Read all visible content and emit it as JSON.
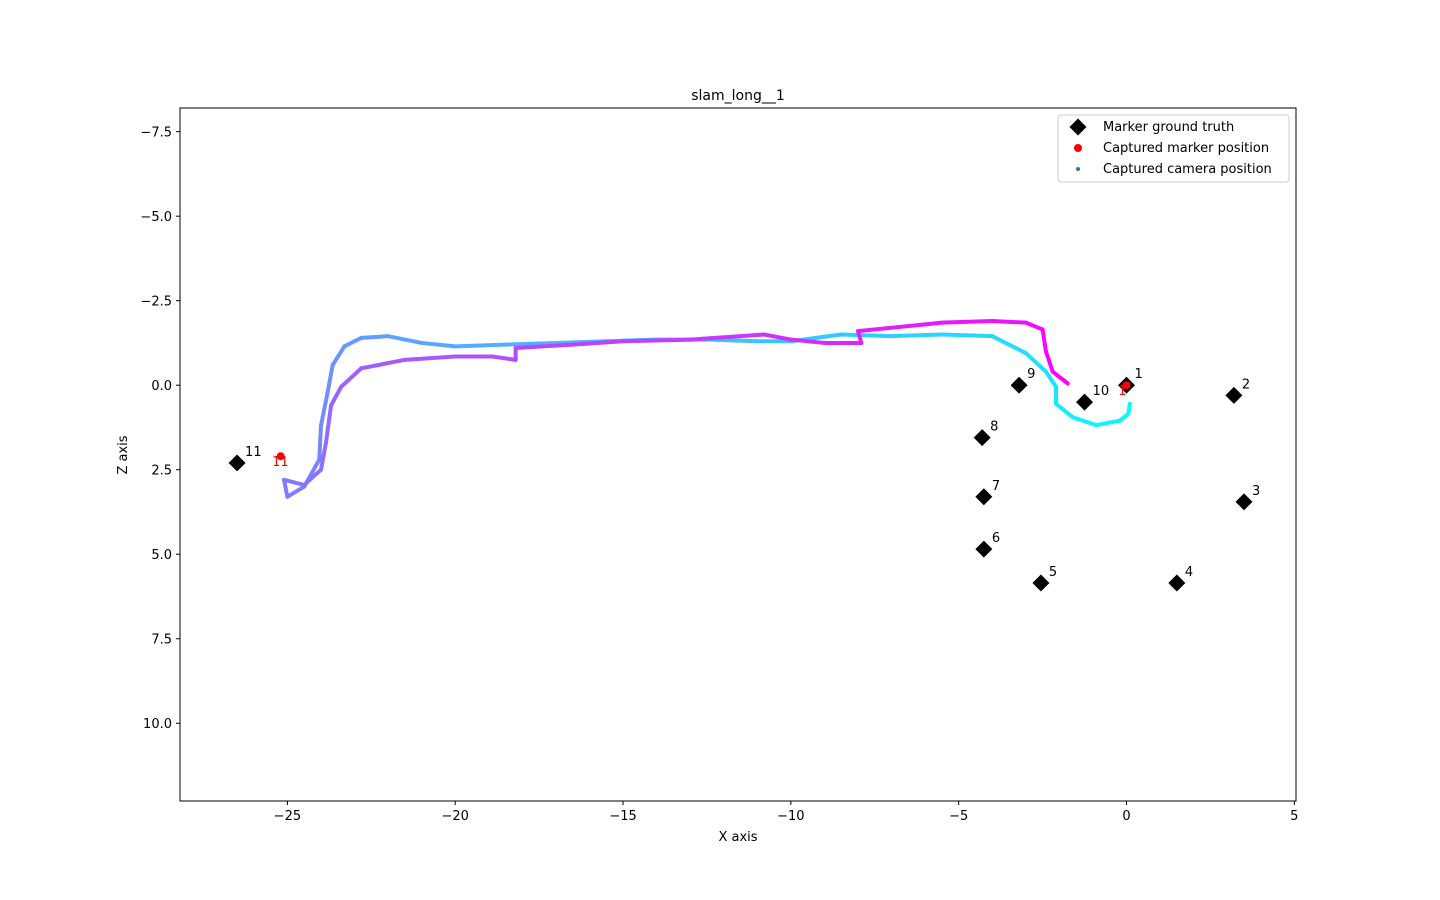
{
  "chart_data": {
    "type": "scatter",
    "title": "slam_long__1",
    "xlabel": "X axis",
    "ylabel": "Z axis",
    "xlim": [
      -28.2,
      5.05
    ],
    "ylim": [
      12.3,
      -8.2
    ],
    "y_inverted": true,
    "grid": false,
    "legend_position": "top-right",
    "x_ticks": [
      -25,
      -20,
      -15,
      -10,
      -5,
      0,
      5
    ],
    "x_tick_labels": [
      "−25",
      "−20",
      "−15",
      "−10",
      "−5",
      "0",
      "5"
    ],
    "y_ticks": [
      -7.5,
      -5.0,
      -2.5,
      0.0,
      2.5,
      5.0,
      7.5,
      10.0
    ],
    "y_tick_labels": [
      "−7.5",
      "−5.0",
      "−2.5",
      "0.0",
      "2.5",
      "5.0",
      "7.5",
      "10.0"
    ],
    "legend": [
      {
        "label": "Marker ground truth",
        "marker": "diamond",
        "color": "#000000"
      },
      {
        "label": "Captured marker position",
        "marker": "circle",
        "color": "#ff0000"
      },
      {
        "label": "Captured camera position",
        "marker": "small-circle",
        "color": "#1f77b4"
      }
    ],
    "marker_ground_truth": [
      {
        "id": "1",
        "x": 0.0,
        "z": 0.0
      },
      {
        "id": "2",
        "x": 3.2,
        "z": 0.3
      },
      {
        "id": "3",
        "x": 3.5,
        "z": 3.45
      },
      {
        "id": "4",
        "x": 1.5,
        "z": 5.85
      },
      {
        "id": "5",
        "x": -2.55,
        "z": 5.85
      },
      {
        "id": "6",
        "x": -4.25,
        "z": 4.85
      },
      {
        "id": "7",
        "x": -4.25,
        "z": 3.3
      },
      {
        "id": "8",
        "x": -4.3,
        "z": 1.55
      },
      {
        "id": "9",
        "x": -3.2,
        "z": 0.0
      },
      {
        "id": "10",
        "x": -1.25,
        "z": 0.5
      },
      {
        "id": "11",
        "x": -26.5,
        "z": 2.3
      }
    ],
    "captured_marker_position": [
      {
        "id": "1",
        "x": 0.0,
        "z": 0.0
      },
      {
        "id": "11",
        "x": -25.2,
        "z": 2.1
      }
    ],
    "camera_trajectory": {
      "colormap": "cool",
      "points": [
        [
          0.1,
          0.55
        ],
        [
          0.05,
          0.85
        ],
        [
          -0.2,
          1.05
        ],
        [
          -0.9,
          1.18
        ],
        [
          -1.6,
          0.95
        ],
        [
          -2.1,
          0.55
        ],
        [
          -2.1,
          0.05
        ],
        [
          -2.4,
          -0.4
        ],
        [
          -3.0,
          -0.95
        ],
        [
          -4.0,
          -1.45
        ],
        [
          -5.5,
          -1.5
        ],
        [
          -7.0,
          -1.45
        ],
        [
          -8.5,
          -1.5
        ],
        [
          -10.0,
          -1.3
        ],
        [
          -11.0,
          -1.3
        ],
        [
          -12.5,
          -1.35
        ],
        [
          -14.0,
          -1.35
        ],
        [
          -15.5,
          -1.3
        ],
        [
          -17.0,
          -1.25
        ],
        [
          -18.5,
          -1.2
        ],
        [
          -20.0,
          -1.15
        ],
        [
          -21.0,
          -1.25
        ],
        [
          -22.0,
          -1.45
        ],
        [
          -22.8,
          -1.4
        ],
        [
          -23.3,
          -1.15
        ],
        [
          -23.65,
          -0.6
        ],
        [
          -23.8,
          0.2
        ],
        [
          -24.0,
          1.2
        ],
        [
          -24.05,
          2.2
        ],
        [
          -24.5,
          3.0
        ],
        [
          -25.0,
          3.3
        ],
        [
          -25.1,
          2.8
        ],
        [
          -24.5,
          2.95
        ],
        [
          -24.0,
          2.5
        ],
        [
          -23.85,
          1.7
        ],
        [
          -23.7,
          0.6
        ],
        [
          -23.4,
          0.05
        ],
        [
          -22.8,
          -0.5
        ],
        [
          -21.5,
          -0.75
        ],
        [
          -20.0,
          -0.85
        ],
        [
          -18.9,
          -0.85
        ],
        [
          -18.2,
          -0.75
        ],
        [
          -18.2,
          -1.1
        ],
        [
          -16.5,
          -1.2
        ],
        [
          -15.0,
          -1.3
        ],
        [
          -13.0,
          -1.35
        ],
        [
          -11.5,
          -1.45
        ],
        [
          -10.8,
          -1.5
        ],
        [
          -10.0,
          -1.35
        ],
        [
          -9.0,
          -1.25
        ],
        [
          -7.9,
          -1.25
        ],
        [
          -8.0,
          -1.6
        ],
        [
          -6.0,
          -1.8
        ],
        [
          -5.5,
          -1.85
        ],
        [
          -4.0,
          -1.9
        ],
        [
          -3.0,
          -1.85
        ],
        [
          -2.5,
          -1.65
        ],
        [
          -2.4,
          -1.0
        ],
        [
          -2.2,
          -0.4
        ],
        [
          -1.75,
          -0.05
        ]
      ]
    }
  }
}
